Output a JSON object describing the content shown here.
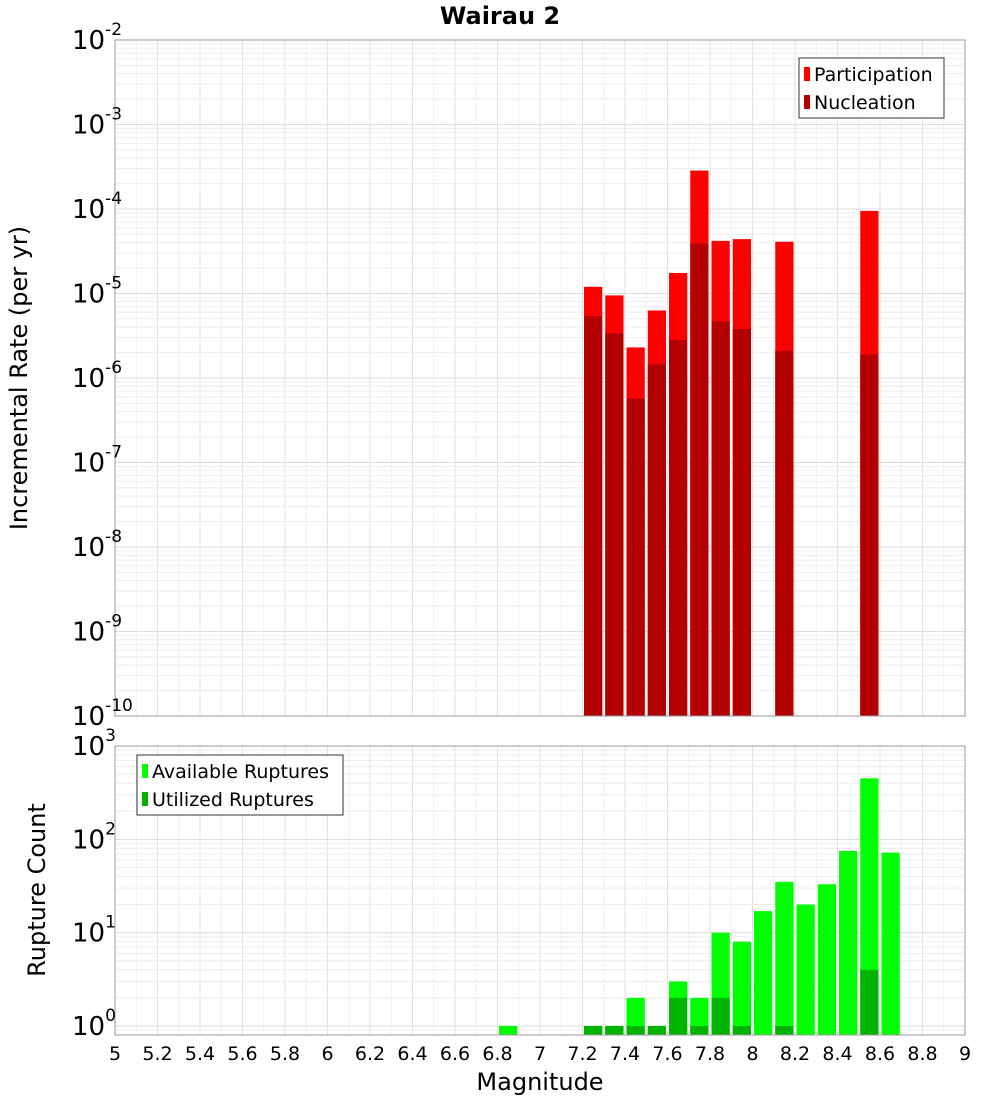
{
  "title": "Wairau 2",
  "xlabel": "Magnitude",
  "chart_data": [
    {
      "type": "bar",
      "title": "Wairau 2",
      "ylabel": "Incremental Rate (per yr)",
      "yscale": "log",
      "ylim": [
        1e-10,
        0.01
      ],
      "xlim": [
        5,
        9
      ],
      "grid": true,
      "legend": "top-right",
      "bar_width": 0.1,
      "x": [
        7.25,
        7.35,
        7.45,
        7.55,
        7.65,
        7.75,
        7.85,
        7.95,
        8.15,
        8.55
      ],
      "series": [
        {
          "name": "Participation",
          "color": "#ff0000",
          "values": [
            1.2e-05,
            9.5e-06,
            2.3e-06,
            6.3e-06,
            1.75e-05,
            0.000285,
            4.2e-05,
            4.4e-05,
            4.1e-05,
            9.5e-05
          ]
        },
        {
          "name": "Nucleation",
          "color": "#b30000",
          "values": [
            5.4e-06,
            3.4e-06,
            5.7e-07,
            1.45e-06,
            2.8e-06,
            3.9e-05,
            4.7e-06,
            3.8e-06,
            2.1e-06,
            1.9e-06
          ]
        }
      ]
    },
    {
      "type": "bar",
      "ylabel": "Rupture Count",
      "yscale": "log",
      "ylim": [
        0.8,
        1000
      ],
      "xlim": [
        5,
        9
      ],
      "grid": true,
      "legend": "top-left",
      "bar_width": 0.1,
      "x": [
        6.85,
        7.25,
        7.35,
        7.45,
        7.55,
        7.65,
        7.75,
        7.85,
        7.95,
        8.05,
        8.15,
        8.25,
        8.35,
        8.45,
        8.55,
        8.65
      ],
      "series": [
        {
          "name": "Available Ruptures",
          "color": "#00ff00",
          "values": [
            1,
            1,
            1,
            2,
            1,
            3,
            2,
            10,
            8,
            17,
            35,
            20,
            33,
            75,
            450,
            72
          ]
        },
        {
          "name": "Utilized Ruptures",
          "color": "#00b300",
          "values": [
            0,
            1,
            1,
            1,
            1,
            2,
            1,
            2,
            1,
            0,
            1,
            0,
            0,
            0,
            4,
            0
          ]
        }
      ]
    }
  ],
  "xticks": [
    "5",
    "5.2",
    "5.4",
    "5.6",
    "5.8",
    "6",
    "6.2",
    "6.4",
    "6.6",
    "6.8",
    "7",
    "7.2",
    "7.4",
    "7.6",
    "7.8",
    "8",
    "8.2",
    "8.4",
    "8.6",
    "8.8",
    "9"
  ],
  "top_yticks": [
    {
      "base": "10",
      "exp": "-2"
    },
    {
      "base": "10",
      "exp": "-3"
    },
    {
      "base": "10",
      "exp": "-4"
    },
    {
      "base": "10",
      "exp": "-5"
    },
    {
      "base": "10",
      "exp": "-6"
    },
    {
      "base": "10",
      "exp": "-7"
    },
    {
      "base": "10",
      "exp": "-8"
    },
    {
      "base": "10",
      "exp": "-9"
    },
    {
      "base": "10",
      "exp": "-10"
    }
  ],
  "bottom_yticks": [
    {
      "base": "10",
      "exp": "3"
    },
    {
      "base": "10",
      "exp": "2"
    },
    {
      "base": "10",
      "exp": "1"
    },
    {
      "base": "10",
      "exp": "0"
    }
  ]
}
